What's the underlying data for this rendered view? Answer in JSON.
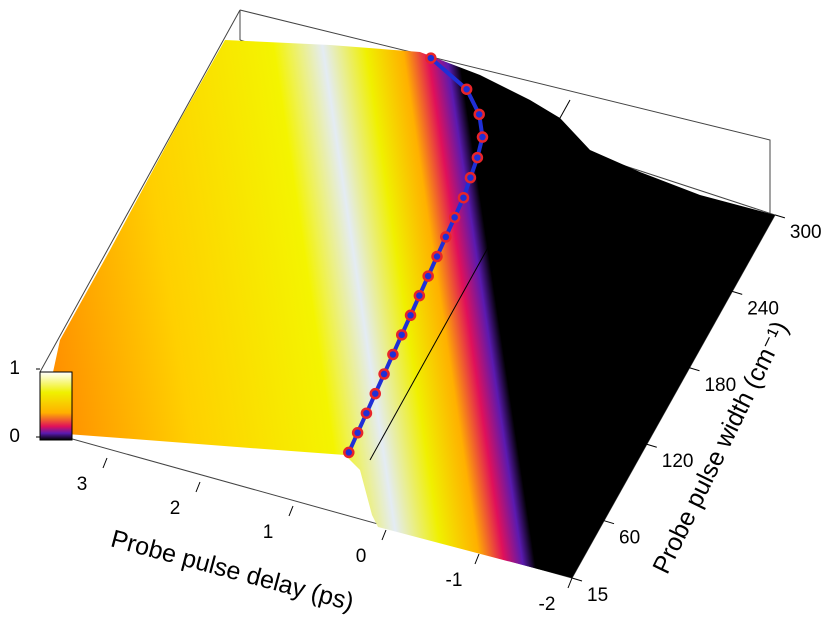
{
  "chart_data": {
    "type": "surface3d",
    "xlabel": "Probe pulse delay (ps)",
    "ylabel": "Probe pulse width (cm⁻¹)",
    "xlim": [
      -2,
      3.5
    ],
    "xticks": [
      -2,
      -1,
      0,
      1,
      2,
      3
    ],
    "ylim": [
      15,
      300
    ],
    "yticks": [
      15,
      60,
      120,
      180,
      240,
      300
    ],
    "zlim": [
      0,
      1
    ],
    "zticks": [
      0,
      1
    ],
    "series": [
      {
        "color": "#1f2fd6",
        "marker_color": "#e8242a",
        "x": [
          15,
          30,
          45,
          60,
          75,
          90,
          105,
          120,
          135,
          150,
          165,
          180,
          195,
          210,
          225,
          240,
          255,
          270,
          285,
          300
        ],
        "values": [
          0.4,
          0.42,
          0.44,
          0.46,
          0.48,
          0.5,
          0.52,
          0.54,
          0.56,
          0.58,
          0.6,
          0.62,
          0.64,
          0.66,
          0.7,
          0.74,
          0.8,
          0.95,
          1.2,
          1.7
        ]
      }
    ]
  }
}
